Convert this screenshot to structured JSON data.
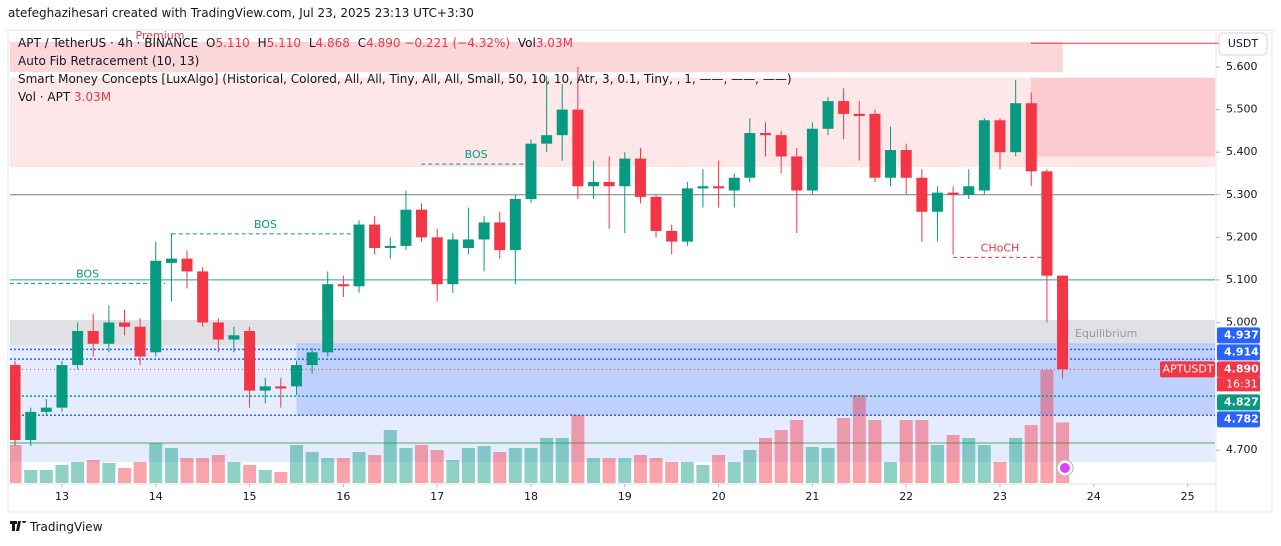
{
  "header": {
    "credit": "atefeghazihesari created with TradingView.com, Jul 23, 2025 23:13 UTC+3:30",
    "symbol": "APT / TetherUS · 4h · BINANCE",
    "ohlc": [
      {
        "key": "O",
        "value": "5.110"
      },
      {
        "key": "H",
        "value": "5.110"
      },
      {
        "key": "L",
        "value": "4.868"
      },
      {
        "key": "C",
        "value": "4.890"
      }
    ],
    "change": "−0.221 (−4.32%)",
    "volume_key": "Vol",
    "volume": "3.03M",
    "indicators": [
      "Auto Fib Retracement (10, 13)",
      "Smart Money Concepts [LuxAlgo] (Historical, Colored, All, All, Tiny, All, All, Small, 50, 10, 10, Atr, 3, 0.1, Tiny, , 1, ——, ——, ——)"
    ],
    "volume_indicator": {
      "name": "Vol · APT",
      "value": "3.03M"
    }
  },
  "footer": {
    "brand": "TradingView"
  },
  "chart_data": {
    "type": "candlestick",
    "currency": "USDT",
    "symbol_badge": "APTUSDT",
    "countdown": "16:31",
    "up_color": "#089981",
    "down_color": "#f23645",
    "grid": false,
    "x": [
      12.5,
      12.667,
      12.833,
      13,
      13.167,
      13.333,
      13.5,
      13.667,
      13.833,
      14,
      14.167,
      14.333,
      14.5,
      14.667,
      14.833,
      15,
      15.167,
      15.333,
      15.5,
      15.667,
      15.833,
      16,
      16.167,
      16.333,
      16.5,
      16.667,
      16.833,
      17,
      17.167,
      17.333,
      17.5,
      17.667,
      17.833,
      18,
      18.167,
      18.333,
      18.5,
      18.667,
      18.833,
      19,
      19.167,
      19.333,
      19.5,
      19.667,
      19.833,
      20,
      20.167,
      20.333,
      20.5,
      20.667,
      20.833,
      21,
      21.167,
      21.333,
      21.5,
      21.667,
      21.833,
      22,
      22.167,
      22.333,
      22.5,
      22.667,
      22.833,
      23,
      23.167,
      23.333,
      23.5,
      23.667
    ],
    "open": [
      4.9,
      4.724,
      4.79,
      4.8,
      4.9,
      4.98,
      4.95,
      5.0,
      4.99,
      4.93,
      5.14,
      5.15,
      5.12,
      5.0,
      4.96,
      4.98,
      4.84,
      4.85,
      4.85,
      4.9,
      4.93,
      5.09,
      5.085,
      5.23,
      5.175,
      5.18,
      5.265,
      5.2,
      5.09,
      5.175,
      5.195,
      5.235,
      5.17,
      5.29,
      5.42,
      5.44,
      5.5,
      5.32,
      5.33,
      5.32,
      5.385,
      5.295,
      5.215,
      5.19,
      5.315,
      5.32,
      5.31,
      5.34,
      5.445,
      5.44,
      5.39,
      5.31,
      5.455,
      5.52,
      5.49,
      5.49,
      5.34,
      5.405,
      5.34,
      5.26,
      5.305,
      5.3,
      5.31,
      5.475,
      5.4,
      5.515,
      5.355,
      5.11
    ],
    "high": [
      4.91,
      4.8,
      4.82,
      4.91,
      5.0,
      5.02,
      5.04,
      5.03,
      5.01,
      5.19,
      5.21,
      5.17,
      5.13,
      5.01,
      4.99,
      4.99,
      4.87,
      4.87,
      4.91,
      4.94,
      5.12,
      5.11,
      5.24,
      5.25,
      5.2,
      5.31,
      5.28,
      5.22,
      5.21,
      5.27,
      5.25,
      5.26,
      5.3,
      5.43,
      5.58,
      5.56,
      5.6,
      5.38,
      5.39,
      5.4,
      5.41,
      5.3,
      5.23,
      5.33,
      5.36,
      5.38,
      5.35,
      5.48,
      5.47,
      5.45,
      5.41,
      5.47,
      5.53,
      5.55,
      5.52,
      5.5,
      5.46,
      5.42,
      5.36,
      5.32,
      5.32,
      5.36,
      5.48,
      5.48,
      5.57,
      5.54,
      5.36,
      5.11
    ],
    "low": [
      4.71,
      4.71,
      4.78,
      4.79,
      4.89,
      4.92,
      4.93,
      4.97,
      4.9,
      4.92,
      5.05,
      5.08,
      4.99,
      4.93,
      4.93,
      4.8,
      4.81,
      4.8,
      4.83,
      4.88,
      4.92,
      5.06,
      5.07,
      5.16,
      5.15,
      5.17,
      5.19,
      5.05,
      5.07,
      5.16,
      5.12,
      5.15,
      5.09,
      5.28,
      5.4,
      5.38,
      5.29,
      5.29,
      5.22,
      5.21,
      5.28,
      5.2,
      5.16,
      5.18,
      5.27,
      5.27,
      5.27,
      5.33,
      5.39,
      5.35,
      5.21,
      5.3,
      5.44,
      5.43,
      5.38,
      5.33,
      5.32,
      5.3,
      5.19,
      5.19,
      5.16,
      5.29,
      5.3,
      5.36,
      5.39,
      5.32,
      5.0,
      4.868
    ],
    "close": [
      4.724,
      4.79,
      4.8,
      4.9,
      4.98,
      4.95,
      5.0,
      4.99,
      4.92,
      5.145,
      5.15,
      5.12,
      5.0,
      4.96,
      4.97,
      4.84,
      4.85,
      4.845,
      4.9,
      4.93,
      5.09,
      5.085,
      5.23,
      5.175,
      5.18,
      5.265,
      5.2,
      5.09,
      5.195,
      5.195,
      5.235,
      5.17,
      5.29,
      5.42,
      5.44,
      5.5,
      5.32,
      5.33,
      5.32,
      5.385,
      5.295,
      5.215,
      5.19,
      5.315,
      5.32,
      5.315,
      5.34,
      5.445,
      5.44,
      5.39,
      5.31,
      5.455,
      5.52,
      5.49,
      5.485,
      5.34,
      5.405,
      5.34,
      5.26,
      5.305,
      5.3,
      5.32,
      5.475,
      5.4,
      5.515,
      5.355,
      5.11,
      4.89
    ],
    "volume": [
      1.9,
      0.65,
      0.65,
      0.9,
      1.05,
      1.15,
      1.0,
      0.75,
      1.05,
      2.0,
      1.75,
      1.25,
      1.25,
      1.4,
      1.05,
      0.9,
      0.65,
      0.55,
      1.9,
      1.55,
      1.25,
      1.25,
      1.55,
      1.4,
      2.65,
      1.75,
      1.9,
      1.65,
      1.15,
      1.75,
      1.85,
      1.55,
      1.75,
      1.75,
      2.25,
      2.25,
      3.4,
      1.25,
      1.25,
      1.25,
      1.4,
      1.25,
      1.05,
      1.05,
      0.9,
      1.4,
      1.05,
      1.65,
      2.25,
      2.65,
      3.15,
      1.8,
      1.75,
      3.25,
      4.4,
      3.15,
      1.05,
      3.15,
      3.15,
      1.9,
      2.4,
      2.25,
      1.9,
      1.05,
      2.25,
      2.9,
      5.65,
      3.03
    ],
    "xlim": [
      12.446,
      25.292
    ],
    "xticks": [
      13,
      14,
      15,
      16,
      17,
      18,
      19,
      20,
      21,
      22,
      23,
      24,
      25
    ],
    "ylim": [
      4.623,
      5.687
    ],
    "yticks": [
      {
        "value": 5.6,
        "label": "5.600"
      },
      {
        "value": 5.5,
        "label": "5.500"
      },
      {
        "value": 5.4,
        "label": "5.400"
      },
      {
        "value": 5.3,
        "label": "5.300"
      },
      {
        "value": 5.2,
        "label": "5.200"
      },
      {
        "value": 5.1,
        "label": "5.100"
      },
      {
        "value": 5.0,
        "label": "5.000"
      },
      {
        "value": 4.7,
        "label": "4.700"
      }
    ],
    "zones": [
      {
        "label": "Premium",
        "y": [
          5.588,
          5.659
        ],
        "x": [
          12.446,
          23.67
        ],
        "color": "#f2364533"
      },
      {
        "y": [
          5.365,
          5.575
        ],
        "x": [
          12.446,
          25.292
        ],
        "color": "#f236451f"
      },
      {
        "y": [
          5.39,
          5.575
        ],
        "x": [
          23.33,
          25.292
        ],
        "color": "#f2364526"
      },
      {
        "label": "Equilibrium",
        "y": [
          4.947,
          5.006
        ],
        "x": [
          12.446,
          25.292
        ],
        "color": "#b2b5be66"
      },
      {
        "y": [
          4.672,
          4.947
        ],
        "x": [
          12.446,
          25.292
        ],
        "color": "#2962ff1f"
      },
      {
        "y": [
          4.782,
          4.951
        ],
        "x": [
          15.5,
          25.292
        ],
        "color": "#2962ff33"
      }
    ],
    "hlines": [
      {
        "value": 5.3,
        "color": "#787b86"
      },
      {
        "value": 5.1,
        "color": "#22ab94"
      },
      {
        "value": 4.717,
        "color": "#4caf50"
      }
    ],
    "high_line": {
      "value": 5.656,
      "x": 23.33,
      "color": "#f23645"
    },
    "structures": [
      {
        "label": "BOS",
        "value": 5.092,
        "x": [
          12.446,
          14.1
        ],
        "color": "#089981"
      },
      {
        "label": "BOS",
        "value": 5.208,
        "x": [
          14.17,
          16.17
        ],
        "color": "#089981"
      },
      {
        "label": "BOS",
        "value": 5.372,
        "x": [
          16.83,
          18.0
        ],
        "color": "#089981"
      },
      {
        "label": "CHoCH",
        "value": 5.153,
        "x": [
          22.5,
          23.5
        ],
        "color": "#f23645"
      }
    ],
    "levels": [
      {
        "value": 4.937,
        "label": "4.937",
        "color": "#2962ff"
      },
      {
        "value": 4.914,
        "label": "4.914",
        "color": "#2962ff"
      },
      {
        "value": 4.89,
        "label": "4.890",
        "color": "#f23645",
        "current": true
      },
      {
        "value": 4.827,
        "label": "4.827",
        "color": "#089981"
      },
      {
        "value": 4.782,
        "label": "4.782",
        "color": "#2962ff"
      }
    ]
  }
}
